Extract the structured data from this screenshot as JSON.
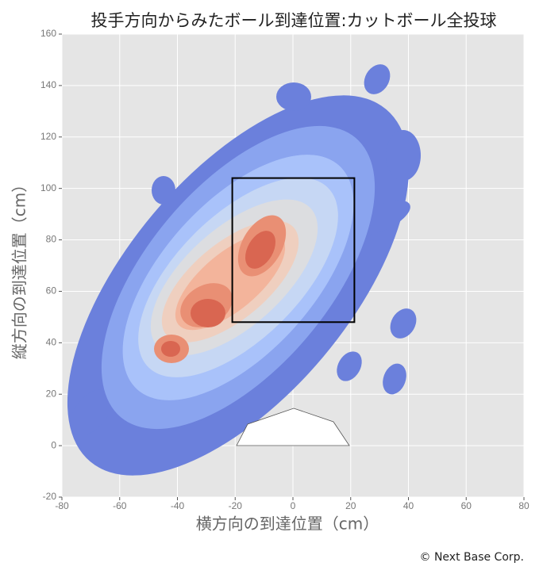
{
  "chart_data": {
    "type": "contour",
    "title": "投手方向からみたボール到達位置:カットボール全投球",
    "x_label": "横方向の到達位置（cm）",
    "y_label": "縦方向の到達位置（cm）",
    "xlim": [
      -80,
      80
    ],
    "ylim": [
      -20,
      160
    ],
    "xticks": [
      -80,
      -60,
      -40,
      -20,
      0,
      20,
      40,
      60,
      80
    ],
    "yticks": [
      -20,
      0,
      20,
      40,
      60,
      80,
      100,
      120,
      140,
      160
    ],
    "grid": true
  },
  "credit": "© Next Base Corp."
}
